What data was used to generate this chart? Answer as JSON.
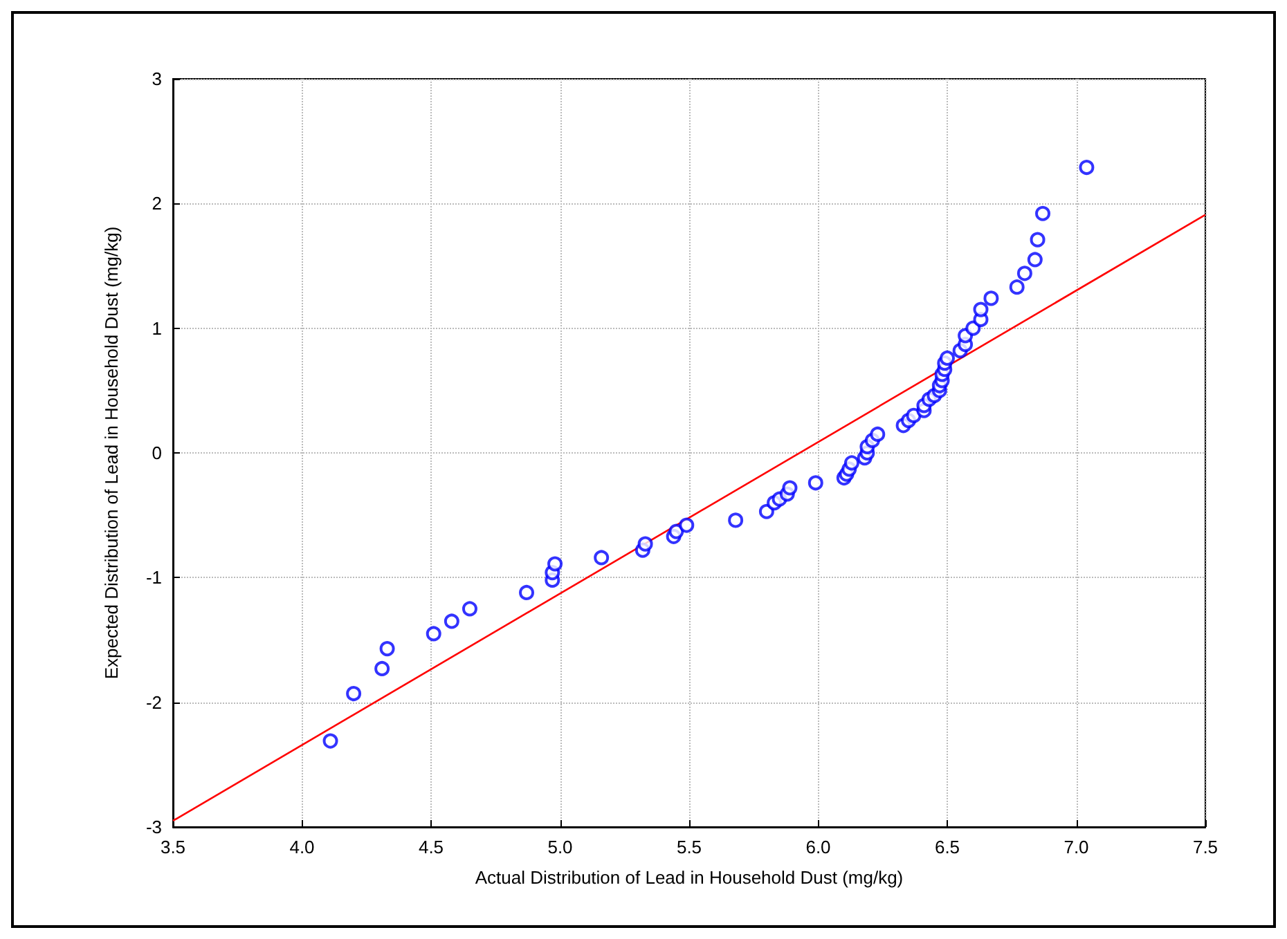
{
  "chart_data": {
    "type": "scatter",
    "xlabel": "Actual Distribution of Lead in Household Dust (mg/kg)",
    "ylabel": "Expected Distribution of Lead in Household Dust (mg/kg)",
    "xlim": [
      3.5,
      7.5
    ],
    "xticks": [
      {
        "value": 3.5,
        "label": "3.5"
      },
      {
        "value": 4,
        "label": "4.0"
      },
      {
        "value": 4.5,
        "label": "4.5"
      },
      {
        "value": 5,
        "label": "5.0"
      },
      {
        "value": 5.5,
        "label": "5.5"
      },
      {
        "value": 6,
        "label": "6.0"
      },
      {
        "value": 6.5,
        "label": "6.5"
      },
      {
        "value": 7,
        "label": "7.0"
      },
      {
        "value": 7.5,
        "label": "7.5"
      }
    ],
    "ylim": [
      -3,
      3
    ],
    "yticks": [
      -3,
      -2,
      -1,
      0,
      1,
      2,
      3
    ],
    "grid": true,
    "marker": "circle",
    "series": [
      {
        "color": "#0000ff",
        "x": [
          4.11,
          4.2,
          4.31,
          4.33,
          4.51,
          4.58,
          4.65,
          4.87,
          4.97,
          4.97,
          4.98,
          5.16,
          5.32,
          5.33,
          5.44,
          5.45,
          5.49,
          5.68,
          5.8,
          5.83,
          5.85,
          5.88,
          5.89,
          5.99,
          6.1,
          6.11,
          6.12,
          6.13,
          6.18,
          6.19,
          6.19,
          6.21,
          6.23,
          6.33,
          6.35,
          6.37,
          6.41,
          6.41,
          6.43,
          6.45,
          6.47,
          6.47,
          6.48,
          6.48,
          6.49,
          6.49,
          6.5,
          6.55,
          6.57,
          6.57,
          6.6,
          6.63,
          6.63,
          6.67,
          6.77,
          6.8,
          6.84,
          6.85,
          6.87,
          7.04
        ],
        "values": [
          -2.31,
          -1.93,
          -1.73,
          -1.57,
          -1.45,
          -1.35,
          -1.25,
          -1.12,
          -1.02,
          -0.96,
          -0.89,
          -0.84,
          -0.78,
          -0.73,
          -0.67,
          -0.63,
          -0.58,
          -0.54,
          -0.47,
          -0.4,
          -0.37,
          -0.33,
          -0.28,
          -0.24,
          -0.2,
          -0.17,
          -0.13,
          -0.08,
          -0.04,
          0.0,
          0.05,
          0.1,
          0.15,
          0.22,
          0.26,
          0.3,
          0.34,
          0.38,
          0.43,
          0.46,
          0.5,
          0.54,
          0.58,
          0.63,
          0.67,
          0.72,
          0.76,
          0.82,
          0.87,
          0.94,
          1.0,
          1.07,
          1.15,
          1.24,
          1.33,
          1.44,
          1.55,
          1.71,
          1.92,
          2.29
        ]
      },
      {
        "type": "line",
        "color": "#ff0000",
        "marker": "none",
        "line_style": "solid",
        "x": [
          3.5,
          7.5
        ],
        "values": [
          -2.95,
          1.91
        ]
      }
    ]
  }
}
